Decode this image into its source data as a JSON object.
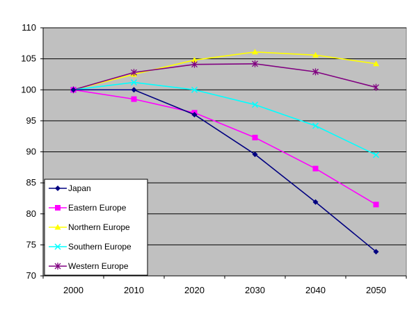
{
  "chart_data": {
    "type": "line",
    "title": "",
    "xlabel": "",
    "ylabel": "",
    "x": [
      "2000",
      "2010",
      "2020",
      "2030",
      "2040",
      "2050"
    ],
    "ylim": [
      70,
      110
    ],
    "yticks": [
      70,
      75,
      80,
      85,
      90,
      95,
      100,
      105,
      110
    ],
    "grid": "horizontal",
    "plot_background": "#c0c0c0",
    "legend_position": "bottom-left",
    "series": [
      {
        "name": "Japan",
        "color": "#000080",
        "marker": "diamond",
        "values": [
          100,
          100,
          96,
          89.6,
          81.9,
          73.9
        ]
      },
      {
        "name": "Eastern Europe",
        "color": "#ff00ff",
        "marker": "square",
        "values": [
          100,
          98.5,
          96.3,
          92.3,
          87.3,
          81.5
        ]
      },
      {
        "name": "Northern Europe",
        "color": "#ffff00",
        "marker": "triangle",
        "values": [
          100,
          102.5,
          104.8,
          106.1,
          105.6,
          104.2
        ]
      },
      {
        "name": "Southern Europe",
        "color": "#00ffff",
        "marker": "x",
        "values": [
          100,
          101.2,
          100,
          97.6,
          94.2,
          89.5
        ]
      },
      {
        "name": "Western Europe",
        "color": "#800080",
        "marker": "star",
        "values": [
          100,
          102.8,
          104.1,
          104.2,
          102.9,
          100.4
        ]
      }
    ]
  }
}
